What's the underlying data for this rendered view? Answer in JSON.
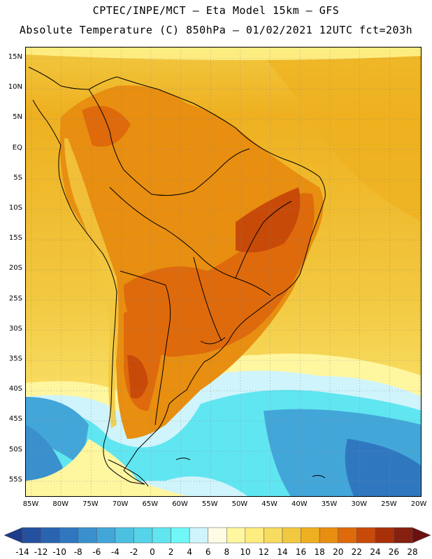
{
  "header": {
    "line1": "CPTEC/INPE/MCT –  Eta Model 15km – GFS",
    "line2": "Absolute Temperature (C) 850hPa – 01/02/2021 12UTC fct=203h"
  },
  "map": {
    "lat_labels": [
      "15N",
      "10N",
      "5N",
      "EQ",
      "5S",
      "10S",
      "15S",
      "20S",
      "25S",
      "30S",
      "35S",
      "40S",
      "45S",
      "50S",
      "55S"
    ],
    "lon_labels": [
      "85W",
      "80W",
      "75W",
      "70W",
      "65W",
      "60W",
      "55W",
      "50W",
      "45W",
      "40W",
      "35W",
      "30W",
      "25W",
      "20W"
    ]
  },
  "colorbar": {
    "ticks": [
      "-14",
      "-12",
      "-10",
      "-8",
      "-6",
      "-4",
      "-2",
      "0",
      "2",
      "4",
      "6",
      "8",
      "10",
      "12",
      "14",
      "16",
      "18",
      "20",
      "22",
      "24",
      "26",
      "28"
    ],
    "colors": [
      "#1e3a8a",
      "#2450a0",
      "#2a64b0",
      "#2f78c0",
      "#3a90cc",
      "#43a6d8",
      "#4cc0e0",
      "#55d4ea",
      "#60e6f0",
      "#70f8f8",
      "#d0f4fc",
      "#fffce6",
      "#fff6a0",
      "#fdec80",
      "#f8dc60",
      "#f2c840",
      "#eeb020",
      "#e88e10",
      "#de6a0c",
      "#c84a08",
      "#a83008",
      "#862010",
      "#6a1010"
    ]
  }
}
